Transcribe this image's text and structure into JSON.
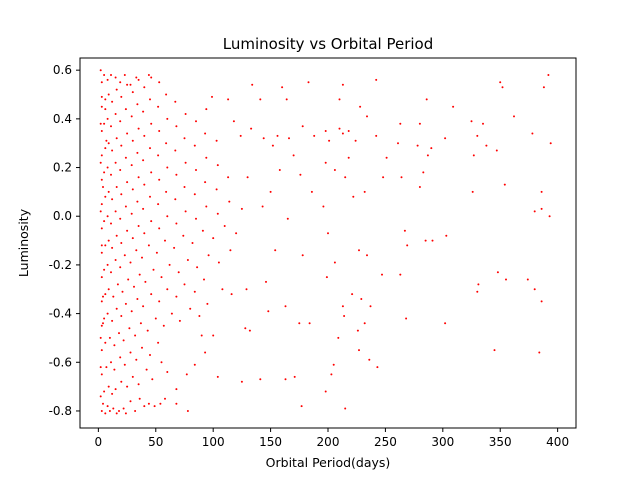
{
  "chart_data": {
    "type": "scatter",
    "title": "Luminosity vs Orbital Period",
    "xlabel": "Orbital Period(days)",
    "ylabel": "Luminosity",
    "xlim": [
      -16,
      416
    ],
    "ylim": [
      -0.87,
      0.65
    ],
    "xticks": [
      0,
      50,
      100,
      150,
      200,
      250,
      300,
      350,
      400
    ],
    "yticks": [
      -0.8,
      -0.6,
      -0.4,
      -0.2,
      0.0,
      0.2,
      0.4,
      0.6
    ],
    "ytick_labels": [
      "-0.8",
      "-0.6",
      "-0.4",
      "-0.2",
      "0.0",
      "0.2",
      "0.4",
      "0.6"
    ],
    "grid": false,
    "marker_color": "#ff0000",
    "points": [
      [
        350,
        0.55
      ],
      [
        352,
        0.53
      ],
      [
        392,
        0.58
      ],
      [
        388,
        0.53
      ],
      [
        242,
        0.56
      ],
      [
        213,
        0.54
      ],
      [
        183,
        0.55
      ],
      [
        134,
        0.54
      ],
      [
        160,
        0.53
      ],
      [
        99,
        0.49
      ],
      [
        113,
        0.48
      ],
      [
        141,
        0.48
      ],
      [
        164,
        0.48
      ],
      [
        210,
        0.48
      ],
      [
        228,
        0.45
      ],
      [
        286,
        0.48
      ],
      [
        309,
        0.45
      ],
      [
        362,
        0.41
      ],
      [
        234,
        0.41
      ],
      [
        242,
        0.33
      ],
      [
        263,
        0.38
      ],
      [
        280,
        0.38
      ],
      [
        325,
        0.39
      ],
      [
        335,
        0.38
      ],
      [
        330,
        0.33
      ],
      [
        338,
        0.29
      ],
      [
        302,
        0.32
      ],
      [
        290,
        0.28
      ],
      [
        278,
        0.29
      ],
      [
        210,
        0.36
      ],
      [
        213,
        0.34
      ],
      [
        218,
        0.35
      ],
      [
        224,
        0.31
      ],
      [
        201,
        0.31
      ],
      [
        198,
        0.35
      ],
      [
        178,
        0.37
      ],
      [
        156,
        0.33
      ],
      [
        144,
        0.32
      ],
      [
        152,
        0.29
      ],
      [
        133,
        0.36
      ],
      [
        118,
        0.39
      ],
      [
        124,
        0.33
      ],
      [
        170,
        0.25
      ],
      [
        166,
        0.32
      ],
      [
        188,
        0.33
      ],
      [
        198,
        0.22
      ],
      [
        218,
        0.24
      ],
      [
        251,
        0.24
      ],
      [
        261,
        0.3
      ],
      [
        287,
        0.25
      ],
      [
        327,
        0.25
      ],
      [
        347,
        0.27
      ],
      [
        394,
        0.3
      ],
      [
        378,
        0.34
      ],
      [
        222,
        0.08
      ],
      [
        232,
        0.1
      ],
      [
        215,
        0.16
      ],
      [
        206,
        0.19
      ],
      [
        248,
        0.16
      ],
      [
        264,
        0.16
      ],
      [
        280,
        0.12
      ],
      [
        283,
        0.18
      ],
      [
        326,
        0.1
      ],
      [
        354,
        0.13
      ],
      [
        386,
        0.1
      ],
      [
        196,
        0.04
      ],
      [
        186,
        0.1
      ],
      [
        176,
        0.17
      ],
      [
        158,
        0.19
      ],
      [
        130,
        0.16
      ],
      [
        150,
        0.1
      ],
      [
        143,
        0.04
      ],
      [
        165,
        -0.01
      ],
      [
        200,
        -0.07
      ],
      [
        227,
        -0.14
      ],
      [
        234,
        -0.16
      ],
      [
        267,
        -0.06
      ],
      [
        269,
        -0.12
      ],
      [
        285,
        -0.1
      ],
      [
        291,
        -0.1
      ],
      [
        303,
        -0.08
      ],
      [
        380,
        0.02
      ],
      [
        386,
        0.03
      ],
      [
        393,
        0.0
      ],
      [
        380,
        -0.3
      ],
      [
        374,
        -0.26
      ],
      [
        386,
        -0.35
      ],
      [
        355,
        -0.26
      ],
      [
        348,
        -0.23
      ],
      [
        331,
        -0.28
      ],
      [
        330,
        -0.31
      ],
      [
        345,
        -0.55
      ],
      [
        384,
        -0.56
      ],
      [
        302,
        -0.44
      ],
      [
        268,
        -0.42
      ],
      [
        263,
        -0.24
      ],
      [
        247,
        -0.24
      ],
      [
        237,
        -0.37
      ],
      [
        232,
        -0.44
      ],
      [
        226,
        -0.47
      ],
      [
        227,
        -0.55
      ],
      [
        236,
        -0.59
      ],
      [
        243,
        -0.62
      ],
      [
        213,
        -0.37
      ],
      [
        214,
        -0.41
      ],
      [
        209,
        -0.5
      ],
      [
        205,
        -0.61
      ],
      [
        215,
        -0.79
      ],
      [
        198,
        -0.72
      ],
      [
        203,
        -0.65
      ],
      [
        171,
        -0.66
      ],
      [
        177,
        -0.78
      ],
      [
        163,
        -0.67
      ],
      [
        175,
        -0.44
      ],
      [
        184,
        -0.44
      ],
      [
        163,
        -0.37
      ],
      [
        146,
        -0.27
      ],
      [
        148,
        -0.39
      ],
      [
        129,
        -0.3
      ],
      [
        128,
        -0.46
      ],
      [
        132,
        -0.47
      ],
      [
        141,
        -0.67
      ],
      [
        125,
        -0.68
      ],
      [
        104,
        -0.66
      ],
      [
        116,
        -0.32
      ],
      [
        108,
        -0.3
      ],
      [
        154,
        -0.14
      ],
      [
        178,
        -0.16
      ],
      [
        199,
        -0.25
      ],
      [
        206,
        -0.19
      ],
      [
        221,
        -0.32
      ],
      [
        229,
        -0.34
      ],
      [
        100,
        -0.49
      ],
      [
        90,
        -0.49
      ],
      [
        93,
        -0.56
      ],
      [
        84,
        -0.61
      ],
      [
        77,
        -0.65
      ],
      [
        68,
        -0.71
      ],
      [
        78,
        -0.8
      ],
      [
        68,
        -0.77
      ],
      [
        58,
        -0.75
      ],
      [
        54,
        -0.77
      ],
      [
        49,
        -0.78
      ],
      [
        44,
        -0.77
      ],
      [
        40,
        -0.78
      ],
      [
        36,
        -0.75
      ],
      [
        32,
        -0.8
      ],
      [
        28,
        -0.76
      ],
      [
        24,
        -0.81
      ],
      [
        22,
        -0.79
      ],
      [
        18,
        -0.8
      ],
      [
        16,
        -0.81
      ],
      [
        13,
        -0.79
      ],
      [
        10,
        -0.8
      ],
      [
        8,
        -0.78
      ],
      [
        6,
        -0.81
      ],
      [
        4,
        -0.77
      ],
      [
        3,
        -0.8
      ],
      [
        2,
        -0.74
      ],
      [
        5,
        -0.72
      ],
      [
        9,
        -0.7
      ],
      [
        12,
        -0.73
      ],
      [
        15,
        -0.71
      ],
      [
        20,
        -0.68
      ],
      [
        25,
        -0.7
      ],
      [
        30,
        -0.66
      ],
      [
        35,
        -0.69
      ],
      [
        42,
        -0.63
      ],
      [
        47,
        -0.67
      ],
      [
        55,
        -0.6
      ],
      [
        60,
        -0.64
      ],
      [
        3,
        -0.65
      ],
      [
        7,
        -0.62
      ],
      [
        11,
        -0.6
      ],
      [
        14,
        -0.63
      ],
      [
        19,
        -0.58
      ],
      [
        23,
        -0.61
      ],
      [
        28,
        -0.56
      ],
      [
        33,
        -0.59
      ],
      [
        38,
        -0.54
      ],
      [
        45,
        -0.57
      ],
      [
        52,
        -0.52
      ],
      [
        3,
        -0.55
      ],
      [
        6,
        -0.52
      ],
      [
        10,
        -0.5
      ],
      [
        14,
        -0.53
      ],
      [
        18,
        -0.48
      ],
      [
        22,
        -0.51
      ],
      [
        27,
        -0.46
      ],
      [
        32,
        -0.49
      ],
      [
        37,
        -0.44
      ],
      [
        43,
        -0.47
      ],
      [
        50,
        -0.42
      ],
      [
        57,
        -0.45
      ],
      [
        64,
        -0.4
      ],
      [
        71,
        -0.43
      ],
      [
        80,
        -0.38
      ],
      [
        88,
        -0.41
      ],
      [
        95,
        -0.36
      ],
      [
        3,
        -0.45
      ],
      [
        5,
        -0.42
      ],
      [
        8,
        -0.4
      ],
      [
        12,
        -0.43
      ],
      [
        16,
        -0.38
      ],
      [
        20,
        -0.41
      ],
      [
        24,
        -0.36
      ],
      [
        29,
        -0.39
      ],
      [
        34,
        -0.34
      ],
      [
        39,
        -0.37
      ],
      [
        46,
        -0.32
      ],
      [
        53,
        -0.35
      ],
      [
        60,
        -0.3
      ],
      [
        68,
        -0.33
      ],
      [
        75,
        -0.28
      ],
      [
        84,
        -0.31
      ],
      [
        92,
        -0.26
      ],
      [
        3,
        -0.35
      ],
      [
        6,
        -0.32
      ],
      [
        9,
        -0.3
      ],
      [
        13,
        -0.33
      ],
      [
        17,
        -0.28
      ],
      [
        21,
        -0.31
      ],
      [
        26,
        -0.26
      ],
      [
        31,
        -0.29
      ],
      [
        36,
        -0.24
      ],
      [
        41,
        -0.27
      ],
      [
        48,
        -0.22
      ],
      [
        55,
        -0.25
      ],
      [
        62,
        -0.2
      ],
      [
        70,
        -0.23
      ],
      [
        78,
        -0.18
      ],
      [
        86,
        -0.21
      ],
      [
        96,
        -0.16
      ],
      [
        105,
        -0.19
      ],
      [
        115,
        -0.14
      ],
      [
        3,
        -0.25
      ],
      [
        5,
        -0.22
      ],
      [
        8,
        -0.2
      ],
      [
        11,
        -0.23
      ],
      [
        15,
        -0.18
      ],
      [
        19,
        -0.21
      ],
      [
        23,
        -0.16
      ],
      [
        28,
        -0.19
      ],
      [
        33,
        -0.14
      ],
      [
        38,
        -0.17
      ],
      [
        44,
        -0.12
      ],
      [
        51,
        -0.15
      ],
      [
        58,
        -0.1
      ],
      [
        66,
        -0.13
      ],
      [
        74,
        -0.08
      ],
      [
        82,
        -0.11
      ],
      [
        91,
        -0.06
      ],
      [
        100,
        -0.09
      ],
      [
        110,
        -0.04
      ],
      [
        120,
        -0.07
      ],
      [
        3,
        -0.15
      ],
      [
        6,
        -0.12
      ],
      [
        9,
        -0.1
      ],
      [
        12,
        -0.13
      ],
      [
        16,
        -0.08
      ],
      [
        20,
        -0.11
      ],
      [
        25,
        -0.06
      ],
      [
        30,
        -0.09
      ],
      [
        35,
        -0.04
      ],
      [
        40,
        -0.07
      ],
      [
        46,
        -0.02
      ],
      [
        53,
        -0.05
      ],
      [
        60,
        0.0
      ],
      [
        68,
        -0.03
      ],
      [
        76,
        0.02
      ],
      [
        85,
        -0.01
      ],
      [
        94,
        0.04
      ],
      [
        104,
        0.01
      ],
      [
        114,
        0.06
      ],
      [
        125,
        0.03
      ],
      [
        3,
        -0.05
      ],
      [
        5,
        -0.02
      ],
      [
        8,
        0.0
      ],
      [
        11,
        -0.03
      ],
      [
        15,
        0.02
      ],
      [
        19,
        -0.01
      ],
      [
        24,
        0.04
      ],
      [
        29,
        0.01
      ],
      [
        34,
        0.06
      ],
      [
        39,
        0.03
      ],
      [
        45,
        0.08
      ],
      [
        52,
        0.05
      ],
      [
        59,
        0.1
      ],
      [
        67,
        0.07
      ],
      [
        75,
        0.12
      ],
      [
        84,
        0.09
      ],
      [
        93,
        0.14
      ],
      [
        103,
        0.11
      ],
      [
        113,
        0.16
      ],
      [
        3,
        0.05
      ],
      [
        6,
        0.08
      ],
      [
        9,
        0.1
      ],
      [
        12,
        0.07
      ],
      [
        16,
        0.12
      ],
      [
        20,
        0.09
      ],
      [
        25,
        0.14
      ],
      [
        30,
        0.11
      ],
      [
        35,
        0.16
      ],
      [
        40,
        0.13
      ],
      [
        46,
        0.18
      ],
      [
        53,
        0.15
      ],
      [
        60,
        0.2
      ],
      [
        68,
        0.17
      ],
      [
        76,
        0.22
      ],
      [
        85,
        0.19
      ],
      [
        94,
        0.24
      ],
      [
        104,
        0.21
      ],
      [
        3,
        0.15
      ],
      [
        5,
        0.18
      ],
      [
        8,
        0.2
      ],
      [
        11,
        0.17
      ],
      [
        15,
        0.22
      ],
      [
        19,
        0.19
      ],
      [
        24,
        0.24
      ],
      [
        29,
        0.21
      ],
      [
        34,
        0.26
      ],
      [
        39,
        0.23
      ],
      [
        45,
        0.28
      ],
      [
        52,
        0.25
      ],
      [
        59,
        0.3
      ],
      [
        67,
        0.27
      ],
      [
        75,
        0.32
      ],
      [
        84,
        0.29
      ],
      [
        93,
        0.34
      ],
      [
        103,
        0.31
      ],
      [
        3,
        0.25
      ],
      [
        6,
        0.28
      ],
      [
        9,
        0.3
      ],
      [
        12,
        0.27
      ],
      [
        16,
        0.32
      ],
      [
        20,
        0.29
      ],
      [
        25,
        0.34
      ],
      [
        30,
        0.31
      ],
      [
        35,
        0.36
      ],
      [
        40,
        0.33
      ],
      [
        46,
        0.38
      ],
      [
        53,
        0.35
      ],
      [
        60,
        0.4
      ],
      [
        68,
        0.37
      ],
      [
        76,
        0.42
      ],
      [
        85,
        0.39
      ],
      [
        94,
        0.44
      ],
      [
        3,
        0.35
      ],
      [
        5,
        0.38
      ],
      [
        8,
        0.4
      ],
      [
        11,
        0.37
      ],
      [
        15,
        0.42
      ],
      [
        19,
        0.39
      ],
      [
        24,
        0.44
      ],
      [
        29,
        0.41
      ],
      [
        34,
        0.46
      ],
      [
        39,
        0.43
      ],
      [
        45,
        0.48
      ],
      [
        52,
        0.45
      ],
      [
        59,
        0.5
      ],
      [
        67,
        0.47
      ],
      [
        3,
        0.45
      ],
      [
        6,
        0.48
      ],
      [
        9,
        0.5
      ],
      [
        12,
        0.47
      ],
      [
        16,
        0.52
      ],
      [
        20,
        0.49
      ],
      [
        25,
        0.54
      ],
      [
        30,
        0.51
      ],
      [
        35,
        0.56
      ],
      [
        40,
        0.53
      ],
      [
        46,
        0.57
      ],
      [
        53,
        0.55
      ],
      [
        3,
        0.55
      ],
      [
        5,
        0.58
      ],
      [
        8,
        0.56
      ],
      [
        11,
        0.58
      ],
      [
        15,
        0.57
      ],
      [
        19,
        0.55
      ],
      [
        23,
        0.58
      ],
      [
        28,
        0.54
      ],
      [
        33,
        0.57
      ],
      [
        44,
        0.58
      ],
      [
        2,
        0.6
      ],
      [
        4,
        0.12
      ],
      [
        7,
        0.31
      ],
      [
        2,
        -0.62
      ],
      [
        4,
        -0.44
      ],
      [
        6,
        0.44
      ],
      [
        2,
        0.22
      ],
      [
        3,
        -0.12
      ],
      [
        2,
        0.02
      ],
      [
        4,
        -0.33
      ],
      [
        2,
        0.38
      ],
      [
        3,
        0.49
      ],
      [
        2,
        -0.5
      ]
    ]
  }
}
